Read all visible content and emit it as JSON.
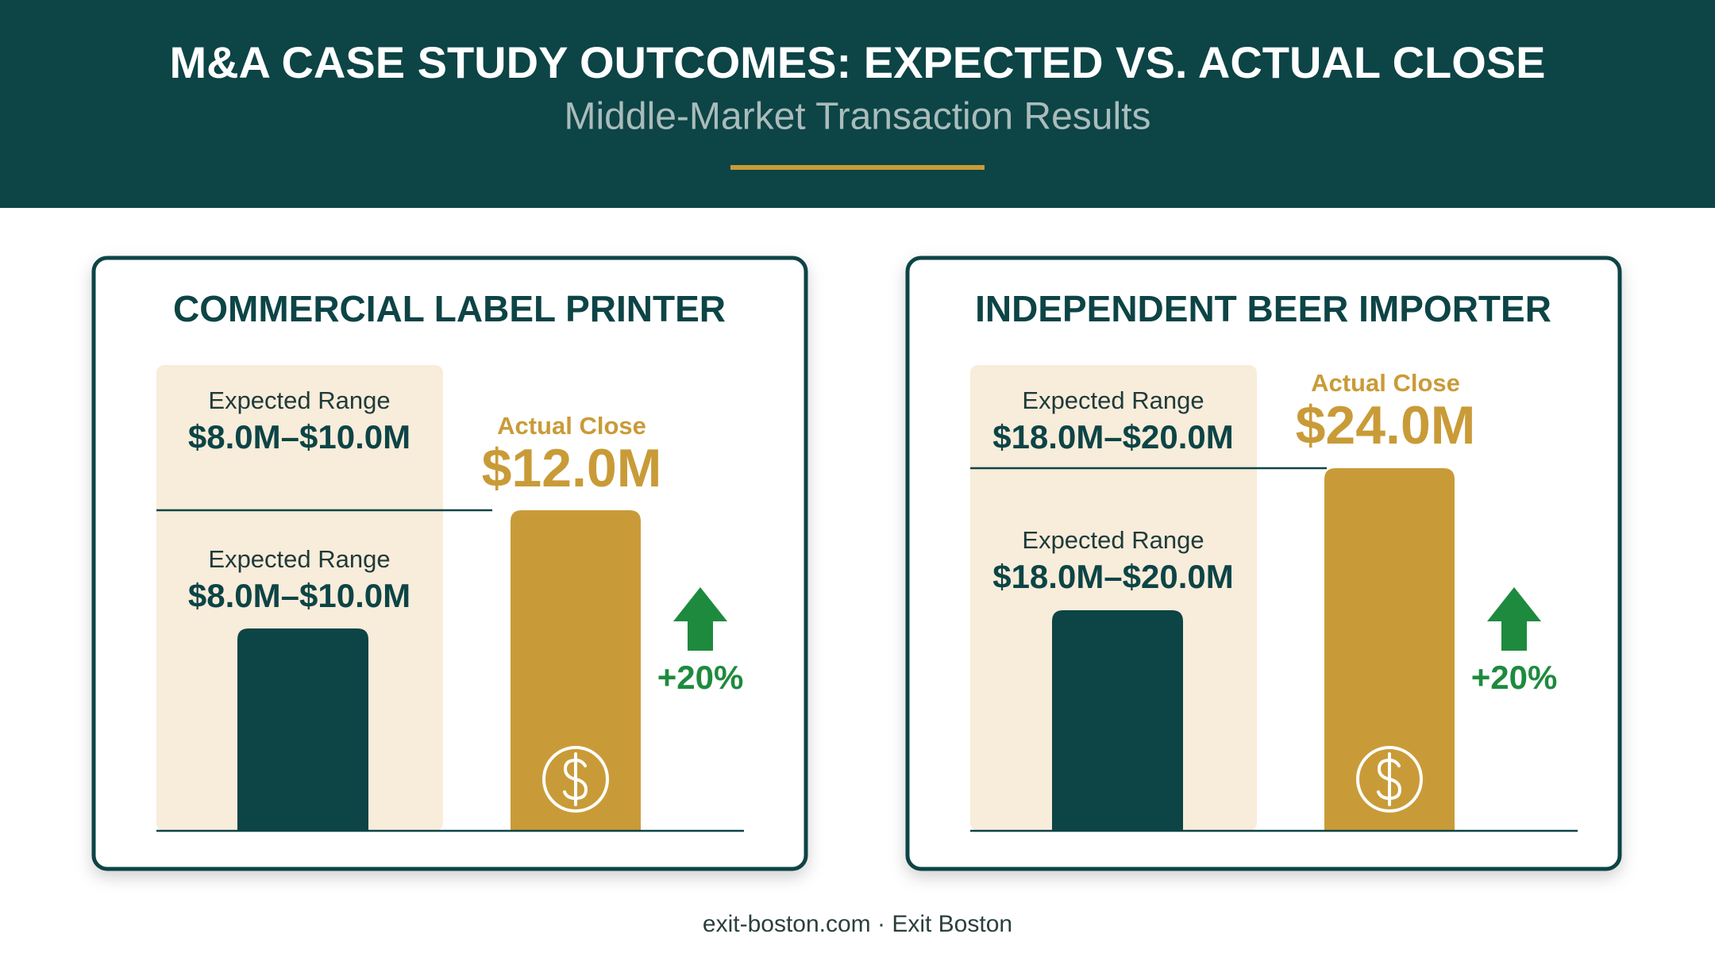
{
  "header": {
    "title": "M&A CASE STUDY OUTCOMES: EXPECTED VS. ACTUAL CLOSE",
    "subtitle": "Middle-Market Transaction Results"
  },
  "panels": [
    {
      "title": "COMMERCIAL LABEL PRINTER",
      "expected": [
        {
          "label": "Expected Range",
          "value": "$8.0M–$10.0M"
        },
        {
          "label": "Expected Range",
          "value": "$8.0M–$10.0M"
        }
      ],
      "actual": {
        "label": "Actual Close",
        "value": "$12.0M"
      },
      "change": "+20%"
    },
    {
      "title": "INDEPENDENT BEER IMPORTER",
      "expected": [
        {
          "label": "Expected Range",
          "value": "$18.0M–$20.0M"
        },
        {
          "label": "Expected Range",
          "value": "$18.0M–$20.0M"
        }
      ],
      "actual": {
        "label": "Actual Close",
        "value": "$24.0M"
      },
      "change": "+20%"
    }
  ],
  "footer": "exit-boston.com · Exit Boston"
}
